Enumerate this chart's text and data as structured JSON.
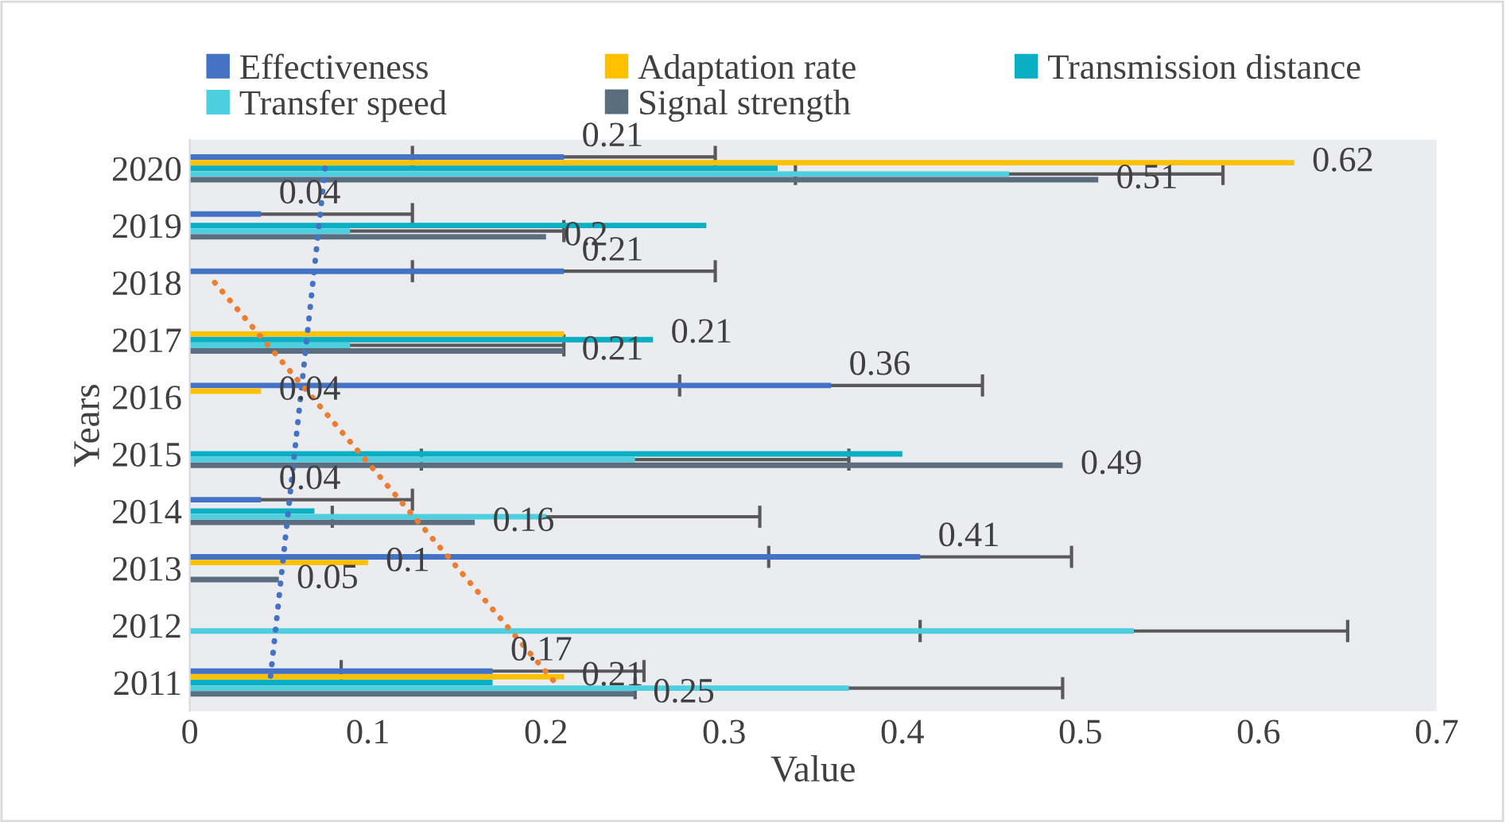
{
  "chart_data": {
    "type": "bar",
    "orientation": "horizontal",
    "xlabel": "Value",
    "ylabel": "Years",
    "categories": [
      "2020",
      "2019",
      "2018",
      "2017",
      "2016",
      "2015",
      "2014",
      "2013",
      "2012",
      "2011"
    ],
    "series": [
      {
        "name": "Effectiveness",
        "color": "#4472c4",
        "values": [
          0.21,
          0.04,
          0.21,
          null,
          0.36,
          null,
          0.04,
          0.41,
          null,
          0.17
        ],
        "errors": [
          0.085,
          0.085,
          0.085,
          null,
          0.085,
          null,
          0.085,
          0.085,
          null,
          0.085
        ],
        "value_labels": [
          "0.21",
          "0.04",
          "0.21",
          null,
          "0.36",
          null,
          "0.04",
          "0.41",
          null,
          "0.17"
        ]
      },
      {
        "name": "Adaptation rate",
        "color": "#ffc000",
        "values": [
          0.62,
          null,
          null,
          0.21,
          0.04,
          null,
          null,
          0.1,
          null,
          0.21
        ],
        "value_labels": [
          "0.62",
          null,
          null,
          "0.21",
          "0.04",
          null,
          null,
          "0.1",
          null,
          "0.21"
        ]
      },
      {
        "name": "Transmission distance",
        "color": "#0aafc4",
        "values": [
          0.33,
          0.29,
          null,
          0.26,
          null,
          0.4,
          0.07,
          null,
          null,
          0.17
        ]
      },
      {
        "name": "Transfer speed",
        "color": "#4dcfe0",
        "values": [
          0.46,
          0.09,
          null,
          0.09,
          null,
          0.25,
          0.2,
          null,
          0.53,
          0.37
        ],
        "errors": [
          0.12,
          0.12,
          null,
          0.12,
          null,
          0.12,
          0.12,
          null,
          0.12,
          0.12
        ]
      },
      {
        "name": "Signal strength",
        "color": "#5a6e7f",
        "values": [
          0.51,
          0.2,
          null,
          0.21,
          null,
          0.49,
          0.16,
          0.05,
          null,
          0.25
        ],
        "value_labels": [
          "0.51",
          "0.2",
          null,
          "0.21",
          null,
          "0.49",
          "0.16",
          "0.05",
          null,
          "0.25"
        ]
      },
      {
        "type": "line",
        "line_style": "dotted",
        "color": "#4472c4",
        "values": [
          0.076,
          null,
          null,
          null,
          null,
          null,
          null,
          null,
          null,
          0.045
        ]
      },
      {
        "type": "line",
        "line_style": "dotted",
        "color": "#ed7d31",
        "values": [
          null,
          null,
          0.014,
          null,
          null,
          null,
          null,
          null,
          null,
          0.205
        ]
      }
    ],
    "xlim": [
      0,
      0.7
    ],
    "xticks": [
      0,
      0.1,
      0.2,
      0.3,
      0.4,
      0.5,
      0.6,
      0.7
    ],
    "grid": false,
    "legend": "top"
  }
}
